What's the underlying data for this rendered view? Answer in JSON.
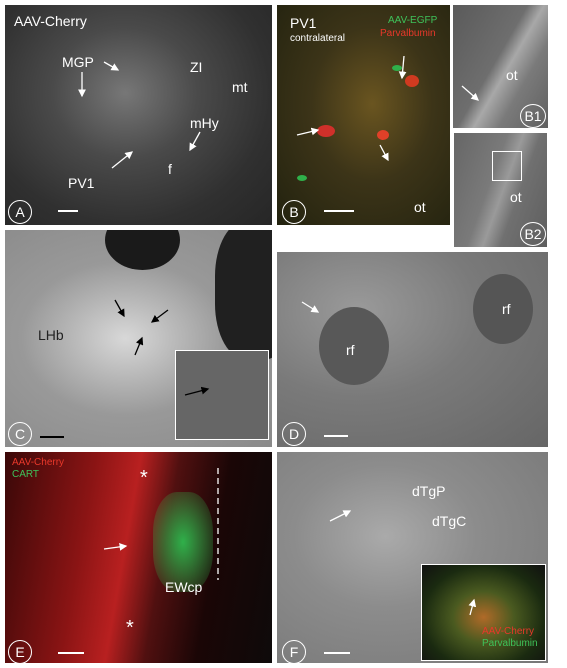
{
  "panels": [
    {
      "letter": "A",
      "labels": [
        "AAV-Cherry",
        "MGP",
        "ZI",
        "mt",
        "mHy",
        "PV1",
        "f"
      ]
    },
    {
      "letter": "B",
      "labels": [
        "PV1",
        "contralateral",
        "AAV-EGFP",
        "Parvalbumin",
        "ot"
      ]
    },
    {
      "letter": "B1",
      "labels": [
        "ot"
      ]
    },
    {
      "letter": "B2",
      "labels": [
        "ot"
      ]
    },
    {
      "letter": "C",
      "labels": [
        "LHb"
      ]
    },
    {
      "letter": "D",
      "labels": [
        "rf",
        "rf"
      ]
    },
    {
      "letter": "E",
      "labels": [
        "AAV-Cherry",
        "CART",
        "EWcp",
        "*",
        "*"
      ]
    },
    {
      "letter": "F",
      "labels": [
        "dTgP",
        "dTgC",
        "AAV-Cherry",
        "Parvalbumin"
      ]
    }
  ]
}
